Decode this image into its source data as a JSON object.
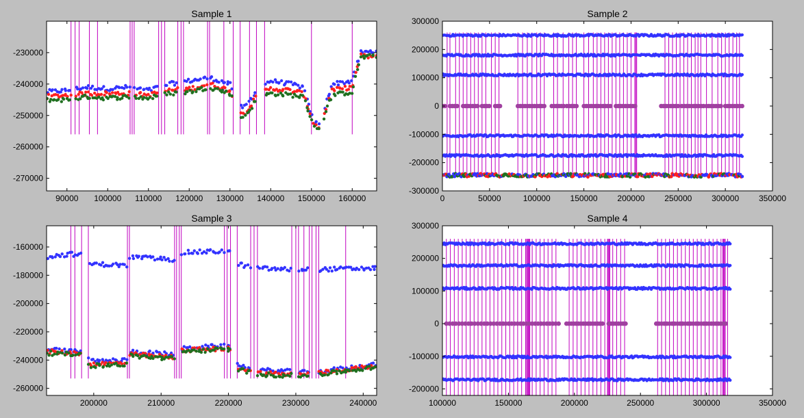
{
  "colors": {
    "figure_bg": "#bfbfbf",
    "axes_bg": "#ffffff",
    "vline": "#c000c0",
    "series_blue": "#3333ff",
    "series_red": "#ff2020",
    "series_green": "#207020",
    "zero_marker": "#a040a0"
  },
  "chart_data": [
    {
      "type": "scatter",
      "title": "Sample 1",
      "xlim": [
        85000,
        166000
      ],
      "ylim": [
        -274000,
        -220000
      ],
      "xticks": [
        90000,
        100000,
        110000,
        120000,
        130000,
        140000,
        150000,
        160000
      ],
      "yticks": [
        -230000,
        -240000,
        -250000,
        -260000,
        -270000
      ],
      "grid": false,
      "vlines": {
        "x": [
          91000,
          92000,
          93000,
          95500,
          97500,
          105500,
          106000,
          106500,
          112500,
          113200,
          114000,
          117200,
          118000,
          118600,
          124500,
          125000,
          128500,
          130800,
          132500,
          134800,
          136500,
          138500,
          150000,
          160000
        ],
        "ymin": -256000,
        "ymax": -220000
      },
      "segments": [
        [
          85000,
          91000
        ],
        [
          92000,
          95500
        ],
        [
          95500,
          97500
        ],
        [
          97500,
          105500
        ],
        [
          106500,
          112500
        ],
        [
          114000,
          117200
        ],
        [
          118600,
          124500
        ],
        [
          125000,
          130800
        ],
        [
          132500,
          134800
        ],
        [
          134800,
          136500
        ],
        [
          138500,
          150000
        ],
        [
          150000,
          152000
        ],
        [
          153000,
          160000
        ],
        [
          160000,
          166000
        ]
      ],
      "series": [
        {
          "color": "blue",
          "profile": [
            [
              85000,
              -242500
            ],
            [
              90000,
              -242000
            ],
            [
              95000,
              -241000
            ],
            [
              100000,
              -241500
            ],
            [
              105000,
              -241000
            ],
            [
              110000,
              -242000
            ],
            [
              115000,
              -240000
            ],
            [
              120000,
              -239000
            ],
            [
              125000,
              -238000
            ],
            [
              130000,
              -240000
            ],
            [
              133000,
              -248000
            ],
            [
              135000,
              -245000
            ],
            [
              137000,
              -241000
            ],
            [
              140000,
              -239000
            ],
            [
              145000,
              -240000
            ],
            [
              148000,
              -241000
            ],
            [
              150500,
              -252000
            ],
            [
              152000,
              -253000
            ],
            [
              155000,
              -240000
            ],
            [
              160000,
              -239000
            ],
            [
              162000,
              -230000
            ],
            [
              166000,
              -229500
            ]
          ]
        },
        {
          "color": "red",
          "profile": [
            [
              85000,
              -244000
            ],
            [
              90000,
              -243500
            ],
            [
              95000,
              -243000
            ],
            [
              100000,
              -243000
            ],
            [
              105000,
              -243000
            ],
            [
              110000,
              -243500
            ],
            [
              115000,
              -242000
            ],
            [
              120000,
              -241500
            ],
            [
              125000,
              -240000
            ],
            [
              130000,
              -242000
            ],
            [
              133000,
              -250000
            ],
            [
              135000,
              -247000
            ],
            [
              137000,
              -243000
            ],
            [
              140000,
              -241500
            ],
            [
              145000,
              -242000
            ],
            [
              148000,
              -243000
            ],
            [
              150500,
              -252500
            ],
            [
              152000,
              -254000
            ],
            [
              155000,
              -242000
            ],
            [
              160000,
              -241000
            ],
            [
              162000,
              -231000
            ],
            [
              166000,
              -231500
            ]
          ]
        },
        {
          "color": "green",
          "profile": [
            [
              85000,
              -245000
            ],
            [
              90000,
              -245000
            ],
            [
              95000,
              -244000
            ],
            [
              100000,
              -244500
            ],
            [
              105000,
              -244000
            ],
            [
              110000,
              -244500
            ],
            [
              115000,
              -243000
            ],
            [
              120000,
              -242500
            ],
            [
              125000,
              -241000
            ],
            [
              130000,
              -243000
            ],
            [
              133000,
              -251000
            ],
            [
              135000,
              -248000
            ],
            [
              137000,
              -244000
            ],
            [
              140000,
              -243000
            ],
            [
              145000,
              -243500
            ],
            [
              148000,
              -244000
            ],
            [
              150500,
              -253000
            ],
            [
              152000,
              -254500
            ],
            [
              155000,
              -243500
            ],
            [
              160000,
              -242500
            ],
            [
              162000,
              -231500
            ],
            [
              166000,
              -231000
            ]
          ]
        }
      ]
    },
    {
      "type": "scatter",
      "title": "Sample 2",
      "xlim": [
        0,
        350000
      ],
      "ylim": [
        -300000,
        300000
      ],
      "xticks": [
        0,
        50000,
        100000,
        150000,
        200000,
        250000,
        300000,
        350000
      ],
      "yticks": [
        300000,
        200000,
        100000,
        0,
        -100000,
        -200000,
        -300000
      ],
      "grid": false,
      "vlines": {
        "x": [
          5000,
          8000,
          14000,
          18000,
          22000,
          26000,
          30000,
          34000,
          38000,
          42000,
          46000,
          52000,
          56000,
          60000,
          80000,
          85000,
          90000,
          95000,
          100000,
          104000,
          108000,
          118000,
          122000,
          128000,
          134000,
          138000,
          142000,
          150000,
          155000,
          160000,
          164000,
          168000,
          172000,
          176000,
          180000,
          184000,
          188000,
          192000,
          196000,
          200000,
          204000,
          205000,
          206000,
          236000,
          240000,
          244000,
          248000,
          252000,
          256000,
          260000,
          264000,
          268000,
          271000,
          274000,
          280000,
          286000,
          292000,
          296000,
          300000,
          304000,
          308000,
          312000,
          315000
        ],
        "ymin": -250000,
        "ymax": 260000
      },
      "x_end": 318000,
      "bands": [
        250000,
        180000,
        110000,
        -105000,
        -175000
      ],
      "bottom_cluster": -245000,
      "zero_clusters": [
        [
          0,
          4000
        ],
        [
          8000,
          16000
        ],
        [
          22000,
          38000
        ],
        [
          42000,
          52000
        ],
        [
          56000,
          62000
        ],
        [
          80000,
          108000
        ],
        [
          116000,
          130000
        ],
        [
          132000,
          144000
        ],
        [
          150000,
          180000
        ],
        [
          184000,
          206000
        ],
        [
          232000,
          250000
        ],
        [
          254000,
          278000
        ],
        [
          280000,
          296000
        ],
        [
          300000,
          318000
        ]
      ]
    },
    {
      "type": "scatter",
      "title": "Sample 3",
      "xlim": [
        193000,
        242000
      ],
      "ylim": [
        -265000,
        -145000
      ],
      "xticks": [
        200000,
        210000,
        220000,
        230000,
        240000
      ],
      "yticks": [
        -160000,
        -180000,
        -200000,
        -220000,
        -240000,
        -260000
      ],
      "grid": false,
      "vlines": {
        "x": [
          196600,
          197200,
          198200,
          199200,
          205000,
          205300,
          212000,
          212300,
          212700,
          213000,
          219400,
          219800,
          220300,
          221300,
          223300,
          223800,
          224300,
          229400,
          230000,
          230400,
          231200,
          232000,
          232400,
          233000,
          233400,
          237400
        ],
        "ymin": -253000,
        "ymax": -145000
      },
      "segments": [
        [
          193000,
          196600
        ],
        [
          196600,
          198200
        ],
        [
          199200,
          205000
        ],
        [
          205300,
          212000
        ],
        [
          213000,
          219400
        ],
        [
          219800,
          220300
        ],
        [
          221300,
          223300
        ],
        [
          224300,
          229400
        ],
        [
          230400,
          232000
        ],
        [
          233400,
          237400
        ],
        [
          237400,
          242000
        ]
      ],
      "series": [
        {
          "color": "blue",
          "profile": [
            [
              193000,
              -167000
            ],
            [
              196600,
              -165000
            ],
            [
              198500,
              -166000
            ],
            [
              199500,
              -172000
            ],
            [
              205000,
              -173000
            ],
            [
              205500,
              -167000
            ],
            [
              212000,
              -169000
            ],
            [
              213000,
              -164000
            ],
            [
              219000,
              -163000
            ],
            [
              220500,
              -163500
            ],
            [
              221300,
              -172000
            ],
            [
              224000,
              -175000
            ],
            [
              229000,
              -176000
            ],
            [
              232000,
              -176000
            ],
            [
              242000,
              -175000
            ]
          ]
        },
        {
          "color": "blue",
          "profile": [
            [
              193000,
              -232000
            ],
            [
              196600,
              -234000
            ],
            [
              198500,
              -233000
            ],
            [
              199500,
              -241000
            ],
            [
              205000,
              -240000
            ],
            [
              205500,
              -234000
            ],
            [
              212000,
              -236000
            ],
            [
              213000,
              -232000
            ],
            [
              219000,
              -230000
            ],
            [
              220500,
              -231000
            ],
            [
              221300,
              -243000
            ],
            [
              224000,
              -247000
            ],
            [
              229000,
              -248000
            ],
            [
              232000,
              -249000
            ],
            [
              242000,
              -243000
            ]
          ]
        },
        {
          "color": "red",
          "profile": [
            [
              193000,
              -234000
            ],
            [
              196600,
              -235000
            ],
            [
              198500,
              -235000
            ],
            [
              199500,
              -243000
            ],
            [
              205000,
              -242000
            ],
            [
              205500,
              -236000
            ],
            [
              212000,
              -238000
            ],
            [
              213000,
              -233000
            ],
            [
              219000,
              -232000
            ],
            [
              220500,
              -232000
            ],
            [
              221300,
              -245000
            ],
            [
              224000,
              -249000
            ],
            [
              229000,
              -250000
            ],
            [
              232000,
              -250000
            ],
            [
              242000,
              -244000
            ]
          ]
        },
        {
          "color": "green",
          "profile": [
            [
              193000,
              -235000
            ],
            [
              196600,
              -236000
            ],
            [
              198500,
              -236000
            ],
            [
              199500,
              -244000
            ],
            [
              205000,
              -243000
            ],
            [
              205500,
              -237000
            ],
            [
              212000,
              -239000
            ],
            [
              213000,
              -234000
            ],
            [
              219000,
              -232500
            ],
            [
              220500,
              -233000
            ],
            [
              221300,
              -246000
            ],
            [
              224000,
              -250000
            ],
            [
              229000,
              -251000
            ],
            [
              232000,
              -251000
            ],
            [
              242000,
              -245000
            ]
          ]
        }
      ]
    },
    {
      "type": "scatter",
      "title": "Sample 4",
      "xlim": [
        100000,
        350000
      ],
      "ylim": [
        -220000,
        300000
      ],
      "xticks": [
        100000,
        150000,
        200000,
        250000,
        300000,
        350000
      ],
      "yticks": [
        300000,
        200000,
        100000,
        0,
        -100000,
        -200000
      ],
      "grid": false,
      "vlines": {
        "x": [
          103000,
          106000,
          109000,
          112000,
          115000,
          118000,
          121000,
          124000,
          127000,
          130000,
          133000,
          136000,
          139000,
          142000,
          145000,
          148000,
          151000,
          154000,
          157000,
          160000,
          163000,
          163800,
          164400,
          165000,
          165600,
          166200,
          168000,
          171000,
          174000,
          177000,
          180000,
          183000,
          186000,
          196000,
          199000,
          202000,
          205000,
          208000,
          211000,
          214000,
          217000,
          220000,
          223000,
          225000,
          225600,
          226200,
          226800,
          229000,
          232000,
          235000,
          238000,
          263000,
          266000,
          269000,
          272000,
          275000,
          278000,
          281000,
          284000,
          287000,
          290000,
          293000,
          296000,
          299000,
          302000,
          305000,
          308000,
          311000,
          312400,
          313000,
          313600,
          314200,
          316000
        ],
        "ymin": -220000,
        "ymax": 260000
      },
      "x_end": 318000,
      "bands": [
        245000,
        178000,
        108000,
        -102000,
        -172000
      ],
      "zero_clusters": [
        [
          103000,
          146000
        ],
        [
          148000,
          188000
        ],
        [
          194000,
          222000
        ],
        [
          226000,
          240000
        ],
        [
          262000,
          298000
        ],
        [
          300000,
          316000
        ]
      ]
    }
  ]
}
